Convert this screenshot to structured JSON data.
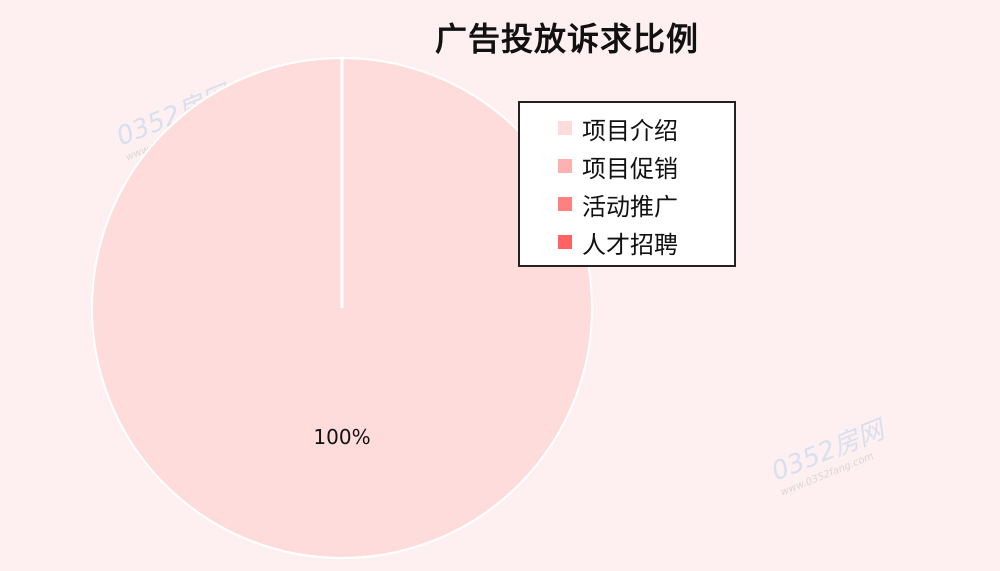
{
  "title": "广告投放诉求比例",
  "watermark": {
    "brand": "0352房网",
    "url": "www.0352fang.com"
  },
  "chart_data": {
    "type": "pie",
    "title": "广告投放诉求比例",
    "categories": [
      "项目介绍",
      "项目促销",
      "活动推广",
      "人才招聘"
    ],
    "values": [
      100,
      0,
      0,
      0
    ],
    "colors": [
      "#ffdcdc",
      "#ffb0b0",
      "#ff8080",
      "#ff6262"
    ],
    "data_labels": [
      "100%"
    ],
    "legend_position": "top-right"
  }
}
